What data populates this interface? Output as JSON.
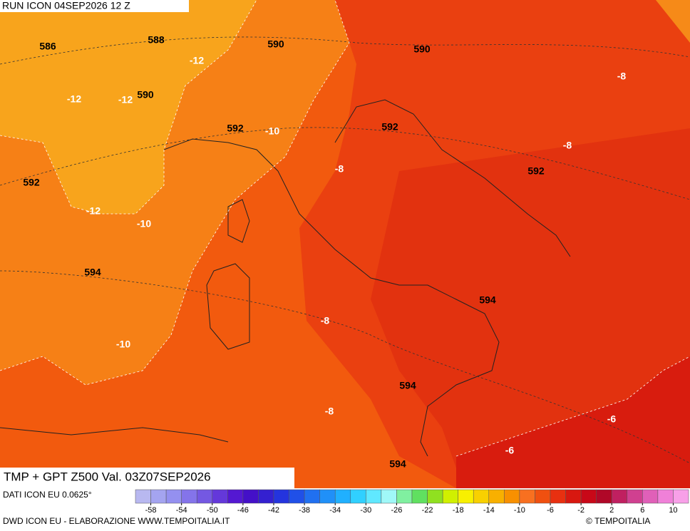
{
  "header": {
    "run": "RUN ICON 04SEP2026 12 Z"
  },
  "map": {
    "title": "TMP + GPT Z500 Val. 03Z07SEP2026",
    "contour_labels": [
      586,
      588,
      -12,
      590,
      590,
      -8,
      -12,
      -12,
      590,
      592,
      -10,
      592,
      -8,
      592,
      -8,
      592,
      -12,
      -10,
      594,
      594,
      -8,
      -10,
      594,
      -8,
      -6,
      -6,
      594
    ]
  },
  "colorbar": {
    "range": [
      -60,
      12
    ],
    "ticks": [
      -58,
      -54,
      -50,
      -46,
      -42,
      -38,
      -34,
      -30,
      -26,
      -22,
      -18,
      -14,
      -10,
      -6,
      -2,
      2,
      6,
      10
    ],
    "colors": [
      "#b8b8f0",
      "#a4a4f0",
      "#9490f0",
      "#8474ea",
      "#7458e2",
      "#6438da",
      "#5418d2",
      "#4410c8",
      "#3420d0",
      "#2434de",
      "#2050e8",
      "#2070f0",
      "#2090f8",
      "#20b0ff",
      "#30d0ff",
      "#60e8ff",
      "#a0f8f8",
      "#80f0a0",
      "#60e060",
      "#90e020",
      "#d0f000",
      "#f8f000",
      "#f8d000",
      "#f8b000",
      "#f89000",
      "#f87020",
      "#f05010",
      "#e83010",
      "#d81810",
      "#c80818",
      "#b00828",
      "#c02060",
      "#d04090",
      "#e060b8",
      "#f080d8",
      "#f8a0e8"
    ]
  },
  "footer": {
    "source": "DATI ICON EU 0.0625°",
    "credits": "DWD ICON EU - ELABORAZIONE WWW.TEMPOITALIA.IT",
    "brand": "© TEMPOITALIA"
  }
}
